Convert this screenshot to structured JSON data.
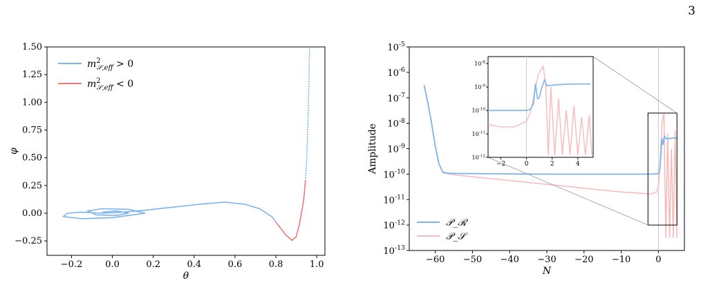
{
  "page": {
    "number": "3"
  },
  "chart_data": [
    {
      "type": "line",
      "xlabel": "θ",
      "ylabel": "φ",
      "xlim": [
        -0.32,
        1.04
      ],
      "ylim": [
        -0.38,
        1.5
      ],
      "xticks": [
        "−0.2",
        "0.0",
        "0.2",
        "0.4",
        "0.6",
        "0.8",
        "1.0"
      ],
      "xtick_values": [
        -0.2,
        0.0,
        0.2,
        0.4,
        0.6,
        0.8,
        1.0
      ],
      "yticks": [
        "−0.25",
        "0.00",
        "0.25",
        "0.50",
        "0.75",
        "1.00",
        "1.25",
        "1.50"
      ],
      "ytick_values": [
        -0.25,
        0.0,
        0.25,
        0.5,
        0.75,
        1.0,
        1.25,
        1.5
      ],
      "legend": [
        "m²_S,eff > 0",
        "m²_S,eff < 0"
      ],
      "legend_placement": "top-left",
      "colors": {
        "positive": "#7ab3ef",
        "negative": "#ec7777"
      },
      "series": [
        {
          "name": "m²_S,eff > 0",
          "x": [
            0.965,
            0.962,
            0.958,
            0.953,
            0.95,
            0.945
          ],
          "y": [
            1.5,
            1.2,
            0.9,
            0.6,
            0.45,
            0.3
          ]
        },
        {
          "name": "m²_S,eff < 0",
          "x": [
            0.945,
            0.938,
            0.93,
            0.915,
            0.9,
            0.88,
            0.85,
            0.8
          ],
          "y": [
            0.3,
            0.15,
            0.05,
            -0.1,
            -0.21,
            -0.245,
            -0.2,
            -0.08
          ]
        },
        {
          "name": "m²_S,eff > 0",
          "x": [
            0.8,
            0.78,
            0.72,
            0.65,
            0.55,
            0.45,
            0.35,
            0.25,
            0.15,
            0.05,
            -0.05,
            -0.15,
            -0.22,
            -0.24,
            -0.15,
            0.0,
            0.12,
            0.16,
            0.08,
            -0.05,
            -0.12,
            -0.08,
            0.02,
            0.08,
            0.02,
            -0.05
          ],
          "y": [
            -0.08,
            -0.03,
            0.04,
            0.08,
            0.1,
            0.085,
            0.065,
            0.045,
            0.025,
            0.01,
            0.0,
            0.01,
            0.0,
            -0.03,
            -0.05,
            -0.04,
            -0.01,
            0.0,
            0.035,
            0.04,
            0.02,
            -0.015,
            -0.02,
            0.0,
            0.02,
            0.01
          ]
        }
      ]
    },
    {
      "type": "line",
      "xlabel": "N",
      "ylabel": "Amplitude",
      "yscale": "log",
      "xlim": [
        -67,
        7
      ],
      "ylim_exp": [
        -13,
        -5
      ],
      "xticks": [
        "−60",
        "−50",
        "−40",
        "−30",
        "−20",
        "−10",
        "0"
      ],
      "xtick_values": [
        -60,
        -50,
        -40,
        -30,
        -20,
        -10,
        0
      ],
      "yticks": [
        "10-13",
        "10-12",
        "10-11",
        "10-10",
        "10-9",
        "10-8",
        "10-7",
        "10-6",
        "10-5"
      ],
      "ytick_values": [
        -13,
        -12,
        -11,
        -10,
        -9,
        -8,
        -7,
        -6,
        -5
      ],
      "legend": [
        "𝒫_ℛ",
        "𝒫_𝒮"
      ],
      "legend_placement": "bottom-left",
      "colors": {
        "PR": "#7ab3ef",
        "PS": "#f9b9b9"
      },
      "vline_x": 0,
      "zoom_box": {
        "x": [
          -2.8,
          5
        ],
        "y_exp": [
          -12,
          -7.6
        ]
      },
      "series": [
        {
          "name": "𝒫_ℛ",
          "x": [
            -63,
            -62,
            -61,
            -60,
            -59,
            -58,
            -57,
            -55,
            -50,
            -40,
            -30,
            -20,
            -10,
            -2,
            0,
            0.4,
            0.7,
            0.9,
            1.2,
            1.6,
            2,
            3,
            4,
            5
          ],
          "y_log10": [
            -6.5,
            -7.2,
            -8.0,
            -8.9,
            -9.6,
            -9.92,
            -9.96,
            -9.97,
            -9.98,
            -9.99,
            -10.0,
            -10.0,
            -10.0,
            -10.0,
            -9.98,
            -9.8,
            -9.2,
            -8.6,
            -8.85,
            -8.5,
            -8.6,
            -8.6,
            -8.58,
            -8.58
          ]
        },
        {
          "name": "𝒫_𝒮",
          "x": [
            -58,
            -55,
            -50,
            -40,
            -30,
            -20,
            -10,
            -5,
            -2,
            -0.5,
            0,
            0.5,
            1,
            1.5,
            2,
            2.5,
            3,
            3.5,
            4,
            4.5,
            5
          ],
          "y_log10": [
            -9.95,
            -10.02,
            -10.1,
            -10.25,
            -10.4,
            -10.55,
            -10.7,
            -10.75,
            -10.78,
            -10.7,
            -10.5,
            -9.5,
            -8.0,
            -7.6,
            -12.5,
            -8.4,
            -12.5,
            -9.0,
            -12.5,
            -8.3,
            -12.5
          ]
        }
      ],
      "inset": {
        "xlim": [
          -3,
          5.2
        ],
        "ylim_exp": [
          -12,
          -7.7
        ],
        "xticks": [
          "−2",
          "0",
          "2",
          "4"
        ],
        "xtick_values": [
          -2,
          0,
          2,
          4
        ],
        "yticks": [
          "10-12",
          "10-11",
          "10-10",
          "10-9",
          "10-8"
        ],
        "ytick_values": [
          -12,
          -11,
          -10,
          -9,
          -8
        ],
        "vline_x": 0,
        "series": [
          {
            "name": "𝒫_ℛ",
            "x": [
              -3,
              -1,
              0,
              0.3,
              0.55,
              0.7,
              0.85,
              1.0,
              1.2,
              1.4,
              1.6,
              2.0,
              2.5,
              3,
              4,
              5
            ],
            "y_log10": [
              -10.0,
              -10.0,
              -10.0,
              -9.95,
              -9.7,
              -8.85,
              -9.5,
              -9.45,
              -9.0,
              -8.7,
              -8.95,
              -8.92,
              -8.9,
              -8.88,
              -8.87,
              -8.87
            ]
          },
          {
            "name": "𝒫_𝒮",
            "x": [
              -3,
              -2,
              -1,
              -0.5,
              0,
              0.3,
              0.6,
              0.9,
              1.1,
              1.3,
              1.5,
              1.7,
              1.9,
              2.2,
              2.5,
              2.8,
              3.1,
              3.4,
              3.7,
              4.0,
              4.3,
              4.6,
              4.9,
              5.1
            ],
            "y_log10": [
              -10.6,
              -10.7,
              -10.7,
              -10.6,
              -10.45,
              -10.1,
              -9.3,
              -8.5,
              -8.3,
              -8.1,
              -8.9,
              -11.9,
              -9.0,
              -11.9,
              -9.5,
              -11.9,
              -10.0,
              -11.9,
              -9.8,
              -11.9,
              -10.3,
              -11.9,
              -10.2,
              -11.9
            ]
          }
        ]
      }
    }
  ]
}
